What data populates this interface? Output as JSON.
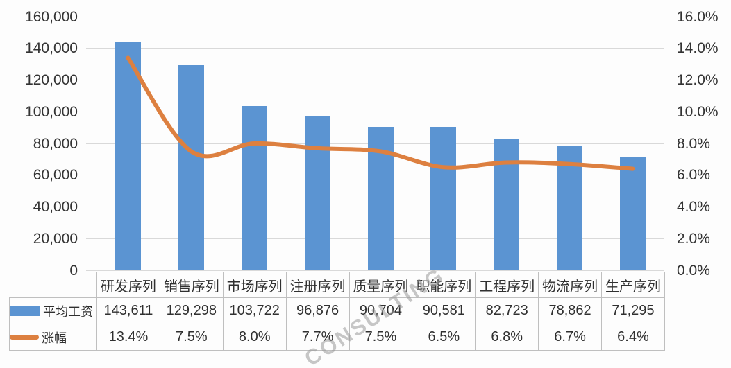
{
  "chart_data": {
    "type": "bar+line",
    "categories": [
      "研发序列",
      "销售序列",
      "市场序列",
      "注册序列",
      "质量序列",
      "职能序列",
      "工程序列",
      "物流序列",
      "生产序列"
    ],
    "series": [
      {
        "name": "平均工资",
        "type": "bar",
        "axis": "left",
        "color": "#5b94d2",
        "values": [
          143611,
          129298,
          103722,
          96876,
          90704,
          90581,
          82723,
          78862,
          71295
        ],
        "labels": [
          "143,611",
          "129,298",
          "103,722",
          "96,876",
          "90,704",
          "90,581",
          "82,723",
          "78,862",
          "71,295"
        ]
      },
      {
        "name": "涨幅",
        "type": "line",
        "axis": "right",
        "color": "#dd8040",
        "values": [
          13.4,
          7.5,
          8.0,
          7.7,
          7.5,
          6.5,
          6.8,
          6.7,
          6.4
        ],
        "labels": [
          "13.4%",
          "7.5%",
          "8.0%",
          "7.7%",
          "7.5%",
          "6.5%",
          "6.8%",
          "6.7%",
          "6.4%"
        ]
      }
    ],
    "left_axis": {
      "min": 0,
      "max": 160000,
      "step": 20000,
      "tick_labels": [
        "160,000",
        "140,000",
        "120,000",
        "100,000",
        "80,000",
        "60,000",
        "40,000",
        "20,000",
        "0"
      ]
    },
    "right_axis": {
      "min": 0,
      "max": 16,
      "step": 2,
      "tick_labels": [
        "16.0%",
        "14.0%",
        "12.0%",
        "10.0%",
        "8.0%",
        "6.0%",
        "4.0%",
        "2.0%",
        "0.0%"
      ]
    },
    "grid": true,
    "legend_position": "data-table-left",
    "data_table_shown": true
  },
  "watermark": {
    "text": "CONSULTING"
  },
  "colors": {
    "bar": "#5b94d2",
    "line": "#dd8040",
    "grid": "#d9d9d9",
    "table_border": "#bfbfbf",
    "text": "#303030",
    "background": "#ffffff"
  }
}
